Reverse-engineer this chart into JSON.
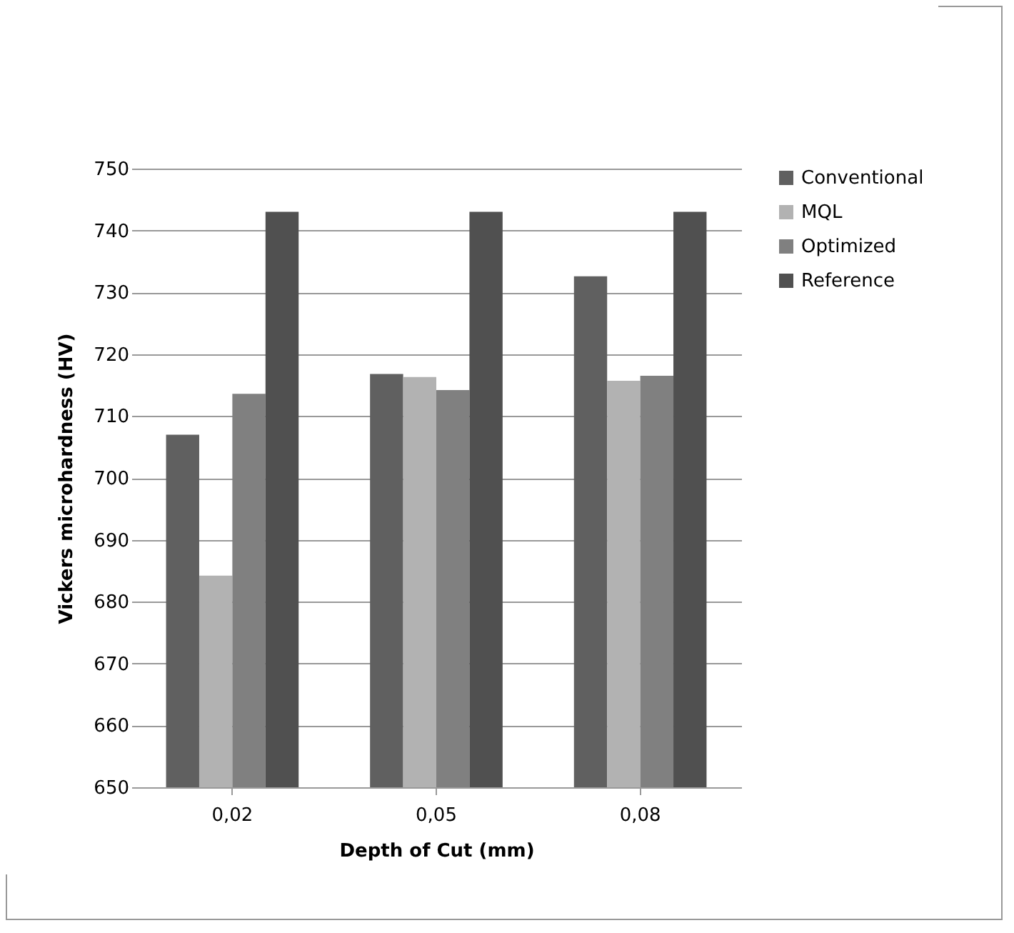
{
  "chart_data": {
    "type": "bar",
    "xlabel": "Depth of Cut (mm)",
    "ylabel": "Vickers microhardness (HV)",
    "categories": [
      "0,02",
      "0,05",
      "0,08"
    ],
    "series": [
      {
        "name": "Conventional",
        "color": "#606060",
        "values": [
          707,
          716.8,
          732.6
        ]
      },
      {
        "name": "MQL",
        "color": "#b2b2b2",
        "values": [
          684.2,
          716.3,
          715.7
        ]
      },
      {
        "name": "Optimized",
        "color": "#808080",
        "values": [
          713.6,
          714.2,
          716.5
        ]
      },
      {
        "name": "Reference",
        "color": "#505050",
        "values": [
          743,
          743,
          743
        ]
      }
    ],
    "ylim": [
      650,
      750
    ],
    "yticks": [
      650,
      660,
      670,
      680,
      690,
      700,
      710,
      720,
      730,
      740,
      750
    ],
    "grid": "y",
    "legend": "right"
  }
}
